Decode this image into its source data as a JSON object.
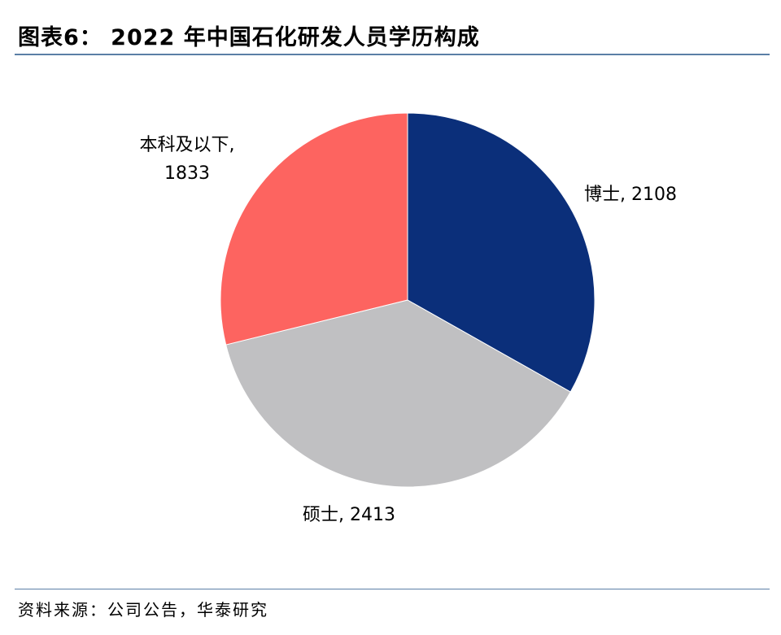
{
  "figure": {
    "title": "图表6： 2022 年中国石化研发人员学历构成",
    "source": "资料来源：公司公告，华泰研究"
  },
  "chart_data": {
    "type": "pie",
    "title": "",
    "start_angle_deg": 0,
    "direction": "clockwise",
    "slices": [
      {
        "label": "博士",
        "value": 2108,
        "display_label": "博士, 2108",
        "color": "#0b2f7a"
      },
      {
        "label": "硕士",
        "value": 2413,
        "display_label": "硕士, 2413",
        "color": "#c0c0c2"
      },
      {
        "label": "本科及以下",
        "value": 1833,
        "display_label_lines": [
          "本科及以下,",
          "1833"
        ],
        "color": "#fd6460"
      }
    ]
  }
}
